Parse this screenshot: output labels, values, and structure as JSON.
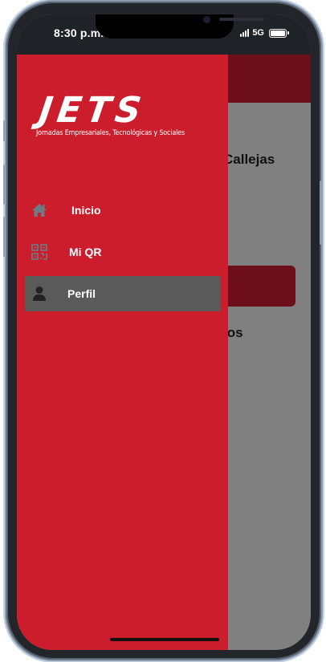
{
  "status_bar": {
    "time": "8:30 p.m.",
    "network": "5G"
  },
  "background": {
    "text_top": "Callejas",
    "text_bottom": "los"
  },
  "drawer": {
    "logo_title": "JETS",
    "logo_subtitle": "Jornadas Empresariales, Tecnológicas y Sociales",
    "items": [
      {
        "label": "Inicio",
        "icon": "home-icon",
        "active": false
      },
      {
        "label": "Mi QR",
        "icon": "qr-code-icon",
        "active": false
      },
      {
        "label": "Perfil",
        "icon": "user-icon",
        "active": true
      }
    ]
  },
  "colors": {
    "drawer_bg": "#cc1d2d",
    "header_dark": "#6d0f1a",
    "active_item": "#5a5a5a",
    "overlay_gray": "#808080"
  }
}
